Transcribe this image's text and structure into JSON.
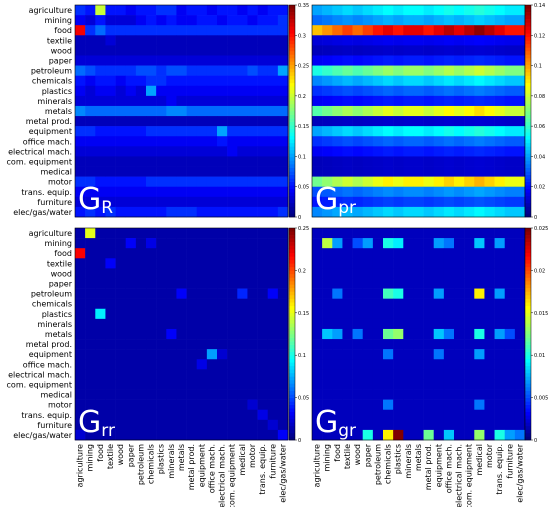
{
  "chart_data": [
    {
      "type": "heatmap",
      "title_main": "G",
      "title_sub": "R",
      "rows": [
        "agriculture",
        "mining",
        "food",
        "textile",
        "wood",
        "paper",
        "petroleum",
        "chemicals",
        "plastics",
        "minerals",
        "metals",
        "metal prod.",
        "equipment",
        "office mach.",
        "electrical mach.",
        "com. equipment",
        "medical",
        "motor",
        "trans. equip.",
        "furniture",
        "elec/gas/water"
      ],
      "cols": [
        "agriculture",
        "mining",
        "food",
        "textile",
        "wood",
        "paper",
        "petroleum",
        "chemicals",
        "plastics",
        "minerals",
        "metals",
        "metal prod.",
        "equipment",
        "office mach.",
        "electrical mach.",
        "com. equipment",
        "medical",
        "motor",
        "trans. equip.",
        "furniture",
        "elec/gas/water"
      ],
      "show_row_labels": true,
      "show_col_labels": false,
      "colorbar": {
        "min": 0,
        "max": 0.35,
        "ticks": [
          "0",
          "0.05",
          "0.1",
          "0.15",
          "0.2",
          "0.25",
          "0.3",
          "0.35"
        ]
      },
      "values": [
        [
          0.06,
          0.05,
          0.2,
          0.05,
          0.05,
          0.04,
          0.05,
          0.05,
          0.06,
          0.06,
          0.04,
          0.05,
          0.05,
          0.04,
          0.05,
          0.05,
          0.04,
          0.05,
          0.04,
          0.05,
          0.05
        ],
        [
          0.04,
          0.03,
          0.05,
          0.03,
          0.03,
          0.03,
          0.04,
          0.05,
          0.04,
          0.05,
          0.04,
          0.04,
          0.05,
          0.05,
          0.04,
          0.05,
          0.05,
          0.04,
          0.05,
          0.05,
          0.06
        ],
        [
          0.31,
          0.06,
          0.08,
          0.06,
          0.06,
          0.06,
          0.06,
          0.06,
          0.06,
          0.06,
          0.06,
          0.06,
          0.06,
          0.06,
          0.06,
          0.06,
          0.06,
          0.06,
          0.06,
          0.06,
          0.06
        ],
        [
          0.02,
          0.02,
          0.02,
          0.03,
          0.02,
          0.02,
          0.02,
          0.02,
          0.02,
          0.02,
          0.02,
          0.02,
          0.02,
          0.02,
          0.02,
          0.02,
          0.02,
          0.02,
          0.02,
          0.02,
          0.02
        ],
        [
          0.02,
          0.02,
          0.02,
          0.02,
          0.02,
          0.02,
          0.02,
          0.02,
          0.02,
          0.02,
          0.02,
          0.02,
          0.02,
          0.02,
          0.02,
          0.02,
          0.02,
          0.02,
          0.02,
          0.02,
          0.02
        ],
        [
          0.03,
          0.03,
          0.03,
          0.03,
          0.03,
          0.03,
          0.03,
          0.03,
          0.03,
          0.03,
          0.03,
          0.03,
          0.03,
          0.03,
          0.03,
          0.03,
          0.03,
          0.03,
          0.03,
          0.03,
          0.03
        ],
        [
          0.08,
          0.07,
          0.06,
          0.06,
          0.06,
          0.06,
          0.07,
          0.07,
          0.06,
          0.07,
          0.07,
          0.06,
          0.06,
          0.06,
          0.06,
          0.06,
          0.06,
          0.07,
          0.06,
          0.06,
          0.1
        ],
        [
          0.05,
          0.04,
          0.05,
          0.05,
          0.04,
          0.05,
          0.05,
          0.06,
          0.06,
          0.05,
          0.05,
          0.05,
          0.05,
          0.05,
          0.05,
          0.05,
          0.05,
          0.05,
          0.05,
          0.05,
          0.05
        ],
        [
          0.04,
          0.03,
          0.04,
          0.04,
          0.03,
          0.04,
          0.03,
          0.1,
          0.04,
          0.04,
          0.04,
          0.04,
          0.04,
          0.04,
          0.04,
          0.04,
          0.04,
          0.04,
          0.04,
          0.04,
          0.04
        ],
        [
          0.03,
          0.03,
          0.03,
          0.03,
          0.03,
          0.03,
          0.03,
          0.03,
          0.03,
          0.04,
          0.03,
          0.03,
          0.03,
          0.03,
          0.03,
          0.03,
          0.03,
          0.03,
          0.03,
          0.03,
          0.03
        ],
        [
          0.09,
          0.08,
          0.08,
          0.08,
          0.08,
          0.08,
          0.08,
          0.08,
          0.08,
          0.09,
          0.09,
          0.08,
          0.08,
          0.08,
          0.08,
          0.08,
          0.08,
          0.08,
          0.08,
          0.08,
          0.08
        ],
        [
          0.02,
          0.02,
          0.02,
          0.02,
          0.02,
          0.02,
          0.02,
          0.02,
          0.02,
          0.02,
          0.02,
          0.02,
          0.02,
          0.02,
          0.02,
          0.02,
          0.02,
          0.02,
          0.02,
          0.02,
          0.02
        ],
        [
          0.06,
          0.06,
          0.05,
          0.05,
          0.05,
          0.05,
          0.05,
          0.06,
          0.06,
          0.06,
          0.06,
          0.06,
          0.06,
          0.06,
          0.1,
          0.06,
          0.06,
          0.06,
          0.06,
          0.06,
          0.06
        ],
        [
          0.04,
          0.04,
          0.04,
          0.04,
          0.04,
          0.04,
          0.04,
          0.04,
          0.04,
          0.04,
          0.04,
          0.04,
          0.04,
          0.04,
          0.05,
          0.04,
          0.04,
          0.04,
          0.04,
          0.04,
          0.04
        ],
        [
          0.03,
          0.03,
          0.03,
          0.03,
          0.03,
          0.03,
          0.03,
          0.03,
          0.03,
          0.03,
          0.03,
          0.03,
          0.03,
          0.03,
          0.03,
          0.04,
          0.03,
          0.03,
          0.03,
          0.03,
          0.03
        ],
        [
          0.02,
          0.02,
          0.02,
          0.02,
          0.02,
          0.02,
          0.02,
          0.02,
          0.02,
          0.02,
          0.02,
          0.02,
          0.02,
          0.02,
          0.02,
          0.02,
          0.02,
          0.02,
          0.02,
          0.02,
          0.02
        ],
        [
          0.02,
          0.02,
          0.02,
          0.02,
          0.02,
          0.02,
          0.02,
          0.02,
          0.02,
          0.02,
          0.02,
          0.02,
          0.02,
          0.02,
          0.02,
          0.02,
          0.02,
          0.02,
          0.02,
          0.02,
          0.02
        ],
        [
          0.06,
          0.06,
          0.05,
          0.05,
          0.05,
          0.05,
          0.05,
          0.06,
          0.06,
          0.06,
          0.06,
          0.06,
          0.06,
          0.06,
          0.06,
          0.06,
          0.06,
          0.06,
          0.06,
          0.06,
          0.06
        ],
        [
          0.04,
          0.04,
          0.04,
          0.04,
          0.04,
          0.04,
          0.04,
          0.04,
          0.04,
          0.04,
          0.04,
          0.04,
          0.04,
          0.04,
          0.04,
          0.04,
          0.04,
          0.04,
          0.04,
          0.04,
          0.04
        ],
        [
          0.03,
          0.03,
          0.03,
          0.03,
          0.03,
          0.03,
          0.03,
          0.03,
          0.03,
          0.03,
          0.03,
          0.03,
          0.03,
          0.03,
          0.03,
          0.03,
          0.03,
          0.03,
          0.03,
          0.03,
          0.03
        ],
        [
          0.05,
          0.06,
          0.05,
          0.06,
          0.05,
          0.05,
          0.05,
          0.05,
          0.05,
          0.06,
          0.06,
          0.06,
          0.05,
          0.05,
          0.05,
          0.05,
          0.05,
          0.05,
          0.05,
          0.05,
          0.06
        ]
      ]
    },
    {
      "type": "heatmap",
      "title_main": "G",
      "title_sub": "pr",
      "show_row_labels": false,
      "show_col_labels": false,
      "colorbar": {
        "min": 0,
        "max": 0.14,
        "ticks": [
          "0",
          "0.02",
          "0.04",
          "0.06",
          "0.08",
          "0.1",
          "0.12",
          "0.14"
        ]
      },
      "row_levels": [
        0.05,
        0.04,
        0.12,
        0.015,
        0.01,
        0.02,
        0.07,
        0.045,
        0.03,
        0.02,
        0.08,
        0.01,
        0.05,
        0.03,
        0.02,
        0.01,
        0.01,
        0.085,
        0.035,
        0.025,
        0.045
      ],
      "col_factors": [
        0.8,
        0.85,
        0.9,
        0.95,
        0.9,
        0.95,
        1.0,
        1.05,
        1.0,
        1.05,
        1.05,
        1.0,
        1.05,
        1.1,
        1.05,
        1.1,
        1.15,
        1.1,
        1.05,
        1.0,
        1.0
      ]
    },
    {
      "type": "heatmap",
      "title_main": "G",
      "title_sub": "rr",
      "show_row_labels": true,
      "show_col_labels": true,
      "colorbar": {
        "min": 0,
        "max": 0.25,
        "ticks": [
          "0",
          "0.05",
          "0.1",
          "0.15",
          "0.2",
          "0.25"
        ]
      },
      "background": 0.01,
      "cells": [
        [
          0,
          1,
          0.15
        ],
        [
          2,
          0,
          0.22
        ],
        [
          1,
          5,
          0.03
        ],
        [
          1,
          7,
          0.025
        ],
        [
          6,
          10,
          0.03
        ],
        [
          8,
          2,
          0.09
        ],
        [
          6,
          16,
          0.04
        ],
        [
          6,
          19,
          0.03
        ],
        [
          12,
          13,
          0.07
        ],
        [
          12,
          14,
          0.02
        ],
        [
          10,
          9,
          0.03
        ],
        [
          13,
          12,
          0.025
        ],
        [
          3,
          3,
          0.03
        ],
        [
          18,
          18,
          0.025
        ],
        [
          17,
          17,
          0.02
        ],
        [
          20,
          20,
          0.03
        ],
        [
          20,
          0,
          0.02
        ],
        [
          19,
          19,
          0.02
        ]
      ]
    },
    {
      "type": "heatmap",
      "title_main": "G",
      "title_sub": "gr",
      "show_row_labels": false,
      "show_col_labels": true,
      "colorbar": {
        "min": 0,
        "max": 0.025,
        "ticks": [
          "0",
          "0.005",
          "0.01",
          "0.015",
          "0.02",
          "0.025"
        ]
      },
      "background": 0.0015,
      "cells": [
        [
          1,
          1,
          0.014
        ],
        [
          1,
          2,
          0.007
        ],
        [
          1,
          4,
          0.005
        ],
        [
          1,
          5,
          0.007
        ],
        [
          1,
          7,
          0.01
        ],
        [
          1,
          8,
          0.009
        ],
        [
          1,
          12,
          0.007
        ],
        [
          1,
          13,
          0.006
        ],
        [
          1,
          16,
          0.008
        ],
        [
          1,
          18,
          0.007
        ],
        [
          6,
          2,
          0.006
        ],
        [
          6,
          7,
          0.011
        ],
        [
          6,
          8,
          0.01
        ],
        [
          6,
          12,
          0.007
        ],
        [
          6,
          16,
          0.016
        ],
        [
          6,
          18,
          0.007
        ],
        [
          10,
          1,
          0.008
        ],
        [
          10,
          2,
          0.007
        ],
        [
          10,
          4,
          0.006
        ],
        [
          10,
          7,
          0.012
        ],
        [
          10,
          8,
          0.013
        ],
        [
          10,
          12,
          0.008
        ],
        [
          10,
          13,
          0.006
        ],
        [
          10,
          16,
          0.01
        ],
        [
          10,
          18,
          0.007
        ],
        [
          10,
          19,
          0.005
        ],
        [
          12,
          7,
          0.006
        ],
        [
          12,
          12,
          0.006
        ],
        [
          12,
          16,
          0.007
        ],
        [
          17,
          7,
          0.006
        ],
        [
          17,
          16,
          0.006
        ],
        [
          20,
          5,
          0.01
        ],
        [
          20,
          7,
          0.016
        ],
        [
          20,
          8,
          0.025
        ],
        [
          20,
          11,
          0.012
        ],
        [
          20,
          13,
          0.008
        ],
        [
          20,
          16,
          0.013
        ],
        [
          20,
          18,
          0.01
        ],
        [
          20,
          19,
          0.007
        ],
        [
          20,
          20,
          0.006
        ]
      ]
    }
  ]
}
